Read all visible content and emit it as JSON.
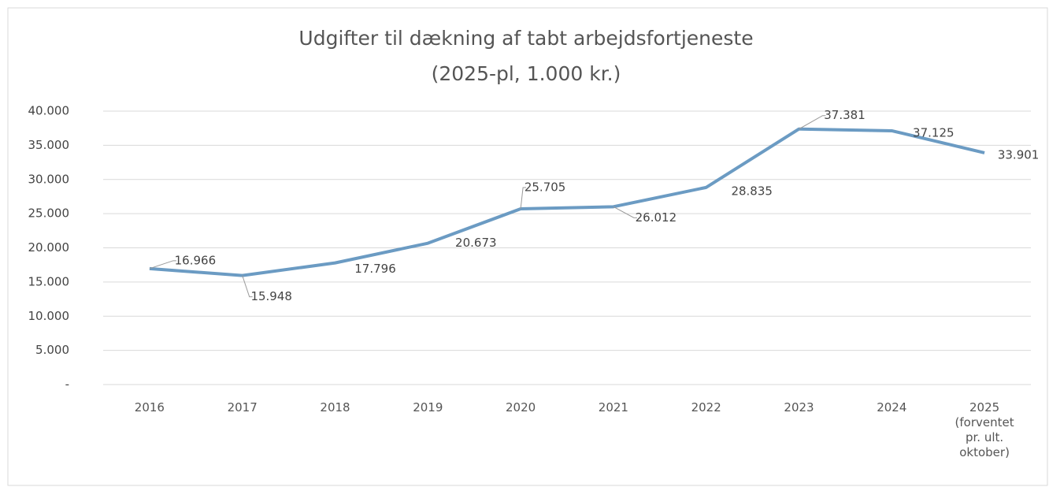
{
  "chart_data": {
    "type": "line",
    "title": "Udgifter til dækning af tabt arbejdsfortjeneste",
    "subtitle": "(2025-pl, 1.000 kr.)",
    "categories": [
      "2016",
      "2017",
      "2018",
      "2019",
      "2020",
      "2021",
      "2022",
      "2023",
      "2024",
      "2025 (forventet pr. ult. oktober)"
    ],
    "values": [
      16966,
      15948,
      17796,
      20673,
      25705,
      26012,
      28835,
      37381,
      37125,
      33901
    ],
    "value_labels": [
      "16.966",
      "15.948",
      "17.796",
      "20.673",
      "25.705",
      "26.012",
      "28.835",
      "37.381",
      "37.125",
      "33.901"
    ],
    "color": "#6b9bc3",
    "ylim": [
      0,
      40000
    ],
    "yticks": [
      {
        "value": 0,
        "label": "-"
      },
      {
        "value": 5000,
        "label": "5.000"
      },
      {
        "value": 10000,
        "label": "10.000"
      },
      {
        "value": 15000,
        "label": "15.000"
      },
      {
        "value": 20000,
        "label": "20.000"
      },
      {
        "value": 25000,
        "label": "25.000"
      },
      {
        "value": 30000,
        "label": "30.000"
      },
      {
        "value": 35000,
        "label": "35.000"
      },
      {
        "value": 40000,
        "label": "40.000"
      }
    ],
    "grid": true
  }
}
